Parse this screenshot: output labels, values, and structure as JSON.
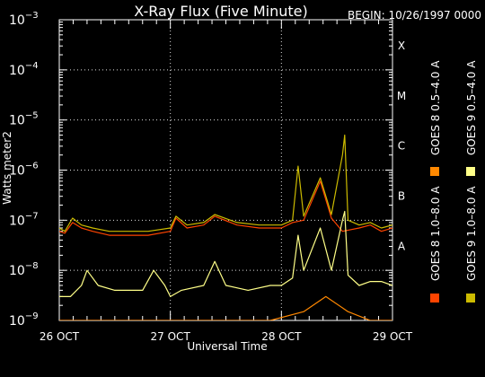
{
  "chart_data": {
    "type": "line",
    "title": "X-Ray Flux (Five Minute)",
    "begin_label": "BEGIN: 10/26/1997 0000",
    "ylabel": "Watts meter2",
    "xlabel": "Universal Time",
    "yscale": "log",
    "ylim": [
      1e-09,
      0.001
    ],
    "y_ticks": [
      {
        "base": "10",
        "exp": "−3"
      },
      {
        "base": "10",
        "exp": "−4"
      },
      {
        "base": "10",
        "exp": "−5"
      },
      {
        "base": "10",
        "exp": "−6"
      },
      {
        "base": "10",
        "exp": "−7"
      },
      {
        "base": "10",
        "exp": "−8"
      },
      {
        "base": "10",
        "exp": "−9"
      }
    ],
    "x_ticks": [
      "26 OCT",
      "27 OCT",
      "28 OCT",
      "29 OCT"
    ],
    "xlim_days": [
      0,
      3
    ],
    "flare_classes": [
      {
        "label": "X",
        "value": 0.0001
      },
      {
        "label": "M",
        "value": 1e-05
      },
      {
        "label": "C",
        "value": 1e-06
      },
      {
        "label": "B",
        "value": 1e-07
      },
      {
        "label": "A",
        "value": 1e-08
      }
    ],
    "grid": "dotted horizontal at decades, vertical at day boundaries",
    "legend_placement": "right, vertical",
    "series": [
      {
        "name": "GOES 8 1.0–8.0 A",
        "color": "#ff4400",
        "points": [
          [
            0,
            6e-08
          ],
          [
            0.05,
            5.5e-08
          ],
          [
            0.12,
            9e-08
          ],
          [
            0.2,
            7e-08
          ],
          [
            0.3,
            6e-08
          ],
          [
            0.45,
            5e-08
          ],
          [
            0.6,
            5e-08
          ],
          [
            0.8,
            5e-08
          ],
          [
            1.0,
            6e-08
          ],
          [
            1.05,
            1.1e-07
          ],
          [
            1.15,
            7e-08
          ],
          [
            1.3,
            8e-08
          ],
          [
            1.4,
            1.2e-07
          ],
          [
            1.6,
            8e-08
          ],
          [
            1.8,
            7e-08
          ],
          [
            2.0,
            7e-08
          ],
          [
            2.1,
            9e-08
          ],
          [
            2.2,
            1e-07
          ],
          [
            2.35,
            6e-07
          ],
          [
            2.45,
            1.1e-07
          ],
          [
            2.55,
            6e-08
          ],
          [
            2.7,
            7e-08
          ],
          [
            2.8,
            8e-08
          ],
          [
            2.9,
            6e-08
          ],
          [
            3.0,
            7e-08
          ]
        ]
      },
      {
        "name": "GOES 8 0.5–4.0 A",
        "color": "#ff8800",
        "points": [
          [
            0,
            1e-09
          ],
          [
            0.3,
            1e-09
          ],
          [
            0.8,
            1e-09
          ],
          [
            1.2,
            1e-09
          ],
          [
            1.5,
            1e-09
          ],
          [
            1.9,
            1e-09
          ],
          [
            2.2,
            1.5e-09
          ],
          [
            2.4,
            3e-09
          ],
          [
            2.6,
            1.5e-09
          ],
          [
            2.8,
            1e-09
          ],
          [
            3.0,
            1e-09
          ]
        ]
      },
      {
        "name": "GOES 9 1.0–8.0 A",
        "color": "#ccbb00",
        "points": [
          [
            0,
            7e-08
          ],
          [
            0.05,
            6e-08
          ],
          [
            0.12,
            1.1e-07
          ],
          [
            0.2,
            8e-08
          ],
          [
            0.3,
            7e-08
          ],
          [
            0.45,
            6e-08
          ],
          [
            0.6,
            6e-08
          ],
          [
            0.8,
            6e-08
          ],
          [
            1.0,
            7e-08
          ],
          [
            1.05,
            1.2e-07
          ],
          [
            1.15,
            8e-08
          ],
          [
            1.3,
            9e-08
          ],
          [
            1.4,
            1.3e-07
          ],
          [
            1.6,
            9e-08
          ],
          [
            1.8,
            8e-08
          ],
          [
            2.0,
            8e-08
          ],
          [
            2.1,
            1e-07
          ],
          [
            2.15,
            1.2e-06
          ],
          [
            2.2,
            1.2e-07
          ],
          [
            2.35,
            7e-07
          ],
          [
            2.45,
            1.3e-07
          ],
          [
            2.55,
            2e-06
          ],
          [
            2.57,
            5e-06
          ],
          [
            2.6,
            1e-07
          ],
          [
            2.7,
            8e-08
          ],
          [
            2.8,
            9e-08
          ],
          [
            2.9,
            7e-08
          ],
          [
            3.0,
            8e-08
          ]
        ]
      },
      {
        "name": "GOES 9 0.5–4.0 A",
        "color": "#ffff88",
        "points": [
          [
            0,
            3e-09
          ],
          [
            0.1,
            3e-09
          ],
          [
            0.2,
            5e-09
          ],
          [
            0.25,
            1e-08
          ],
          [
            0.35,
            5e-09
          ],
          [
            0.5,
            4e-09
          ],
          [
            0.75,
            4e-09
          ],
          [
            0.85,
            1e-08
          ],
          [
            0.95,
            5e-09
          ],
          [
            1.0,
            3e-09
          ],
          [
            1.1,
            4e-09
          ],
          [
            1.3,
            5e-09
          ],
          [
            1.4,
            1.5e-08
          ],
          [
            1.5,
            5e-09
          ],
          [
            1.7,
            4e-09
          ],
          [
            1.9,
            5e-09
          ],
          [
            2.0,
            5e-09
          ],
          [
            2.1,
            7e-09
          ],
          [
            2.15,
            5e-08
          ],
          [
            2.2,
            1e-08
          ],
          [
            2.35,
            7e-08
          ],
          [
            2.45,
            1e-08
          ],
          [
            2.55,
            1e-07
          ],
          [
            2.57,
            1.5e-07
          ],
          [
            2.6,
            8e-09
          ],
          [
            2.7,
            5e-09
          ],
          [
            2.8,
            6e-09
          ],
          [
            2.9,
            6e-09
          ],
          [
            3.0,
            5e-09
          ]
        ]
      }
    ]
  }
}
